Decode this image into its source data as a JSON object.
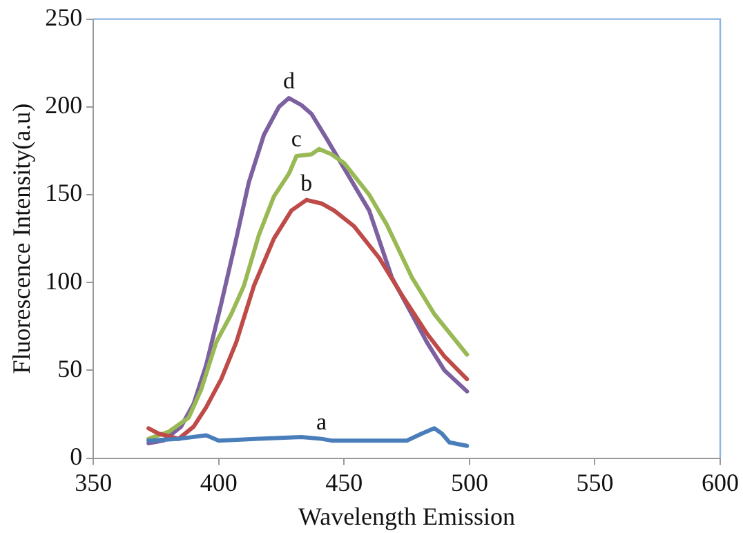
{
  "chart_data": {
    "type": "line",
    "xlabel": "Wavelength Emission",
    "ylabel": "Fluorescence Intensity(a.u)",
    "xlim": [
      350,
      600
    ],
    "xticks": [
      350,
      400,
      450,
      500,
      550,
      600
    ],
    "ylim": [
      0,
      250
    ],
    "yticks": [
      0,
      50,
      100,
      150,
      200,
      250
    ],
    "grid": false,
    "legend": false,
    "marker": "none",
    "line_style": "solid",
    "series": [
      {
        "color": "#4a7ebb",
        "x": [
          372,
          384,
          395,
          400,
          416,
          433,
          441,
          445,
          464,
          475,
          481,
          486,
          489,
          492,
          499
        ],
        "values": [
          10,
          11,
          13,
          10,
          11,
          12,
          11,
          10,
          10,
          10,
          14,
          17,
          14,
          9,
          7
        ]
      },
      {
        "color": "#be4b48",
        "x": [
          372,
          376,
          384,
          390,
          395,
          401,
          407,
          414,
          422,
          429,
          435,
          441,
          446,
          454,
          464,
          473,
          483,
          490,
          499
        ],
        "values": [
          17,
          14,
          11,
          18,
          29,
          45,
          66,
          98,
          125,
          141,
          147,
          145,
          141,
          132,
          114,
          93,
          71,
          58,
          45
        ]
      },
      {
        "color": "#98b954",
        "x": [
          372,
          380,
          388,
          393,
          399,
          405,
          410,
          416,
          422,
          428,
          431,
          437,
          440,
          445,
          450,
          460,
          467,
          477,
          486,
          499
        ],
        "values": [
          11,
          15,
          23,
          39,
          66,
          82,
          98,
          127,
          149,
          162,
          172,
          173,
          176,
          173,
          168,
          150,
          133,
          103,
          82,
          59
        ]
      },
      {
        "color": "#7d60a0",
        "x": [
          372,
          378,
          385,
          390,
          395,
          401,
          407,
          412,
          418,
          424,
          428,
          433,
          437,
          443,
          450,
          460,
          469,
          477,
          483,
          490,
          499
        ],
        "values": [
          8.5,
          10,
          18,
          31,
          53,
          88,
          125,
          157,
          184,
          200,
          205,
          201,
          196,
          182,
          165,
          141,
          103,
          82,
          66,
          50,
          38
        ]
      }
    ],
    "annotations": [
      {
        "text": "a",
        "x": 441,
        "y": 11
      },
      {
        "text": "b",
        "x": 435,
        "y": 147
      },
      {
        "text": "c",
        "x": 431,
        "y": 172
      },
      {
        "text": "d",
        "x": 428,
        "y": 205
      }
    ]
  }
}
